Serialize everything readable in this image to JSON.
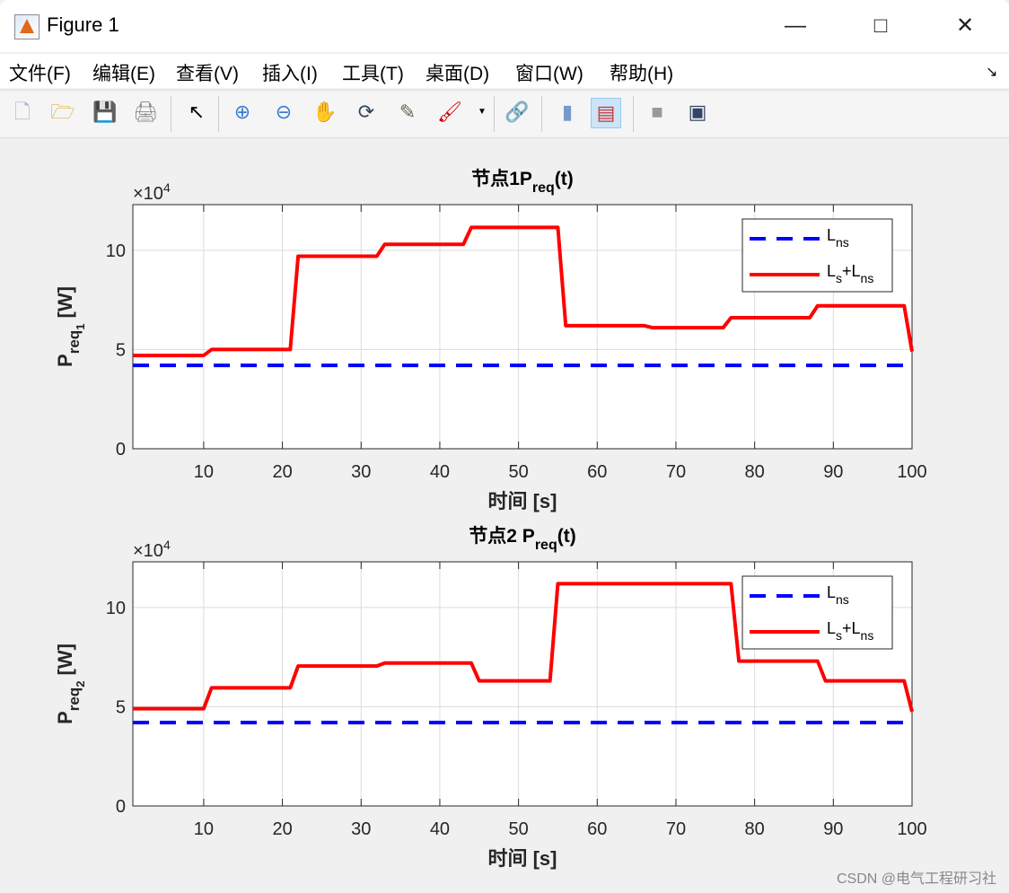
{
  "window": {
    "title": "Figure 1",
    "controls": [
      "minimize",
      "maximize",
      "close"
    ]
  },
  "menu": [
    "文件(F)",
    "编辑(E)",
    "查看(V)",
    "插入(I)",
    "工具(T)",
    "桌面(D)",
    "窗口(W)",
    "帮助(H)"
  ],
  "toolbar": [
    "new-figure-icon",
    "open-icon",
    "save-icon",
    "print-icon",
    "pointer-icon",
    "zoom-in-icon",
    "zoom-out-icon",
    "pan-icon",
    "rotate-icon",
    "data-cursor-icon",
    "brush-icon",
    "link-icon",
    "colorbar-icon",
    "legend-icon",
    "hide-plot-tools-icon",
    "show-plot-tools-icon"
  ],
  "watermark": "CSDN @电气工程研习社",
  "colors": {
    "series1": "#0000ff",
    "series2": "#ff0000"
  },
  "chart_data": [
    {
      "type": "line",
      "title": {
        "prefix": "节点1P",
        "sub": "req",
        "suffix": "(t)"
      },
      "xlabel": "时间 [s]",
      "ylabel": {
        "main": "P",
        "sub": "req",
        "subsub": "1",
        "unit": "  [W]"
      },
      "exponent": "×10^4",
      "xlim": [
        1,
        100
      ],
      "ylim": [
        0,
        12.3
      ],
      "xticks": [
        10,
        20,
        30,
        40,
        50,
        60,
        70,
        80,
        90,
        100
      ],
      "yticks": [
        0,
        5,
        10
      ],
      "grid": true,
      "legend_position": "top-right",
      "series": [
        {
          "name": "L_ns",
          "style": "dashed",
          "color": "#0000ff",
          "x": [
            1,
            100
          ],
          "y": [
            4.2,
            4.2
          ]
        },
        {
          "name": "L_s+L_ns",
          "style": "solid",
          "color": "#ff0000",
          "x": [
            1,
            10,
            11,
            21,
            22,
            32,
            33,
            43,
            44,
            55,
            56,
            66,
            67,
            76,
            77,
            87,
            88,
            99,
            100
          ],
          "y": [
            4.7,
            4.7,
            5.0,
            5.0,
            9.7,
            9.7,
            10.3,
            10.3,
            11.15,
            11.15,
            6.2,
            6.2,
            6.1,
            6.1,
            6.6,
            6.6,
            7.2,
            7.2,
            4.9
          ]
        }
      ]
    },
    {
      "type": "line",
      "title": {
        "prefix": "节点2 P",
        "sub": "req",
        "suffix": "(t)"
      },
      "xlabel": "时间 [s]",
      "ylabel": {
        "main": "P",
        "sub": "req",
        "subsub": "2",
        "unit": "  [W]"
      },
      "exponent": "×10^4",
      "xlim": [
        1,
        100
      ],
      "ylim": [
        0,
        12.3
      ],
      "xticks": [
        10,
        20,
        30,
        40,
        50,
        60,
        70,
        80,
        90,
        100
      ],
      "yticks": [
        0,
        5,
        10
      ],
      "grid": true,
      "legend_position": "top-right",
      "series": [
        {
          "name": "L_ns",
          "style": "dashed",
          "color": "#0000ff",
          "x": [
            1,
            100
          ],
          "y": [
            4.2,
            4.2
          ]
        },
        {
          "name": "L_s+L_ns",
          "style": "solid",
          "color": "#ff0000",
          "x": [
            1,
            10,
            11,
            21,
            22,
            32,
            33,
            44,
            45,
            54,
            55,
            77,
            78,
            88,
            89,
            99,
            100
          ],
          "y": [
            4.9,
            4.9,
            5.95,
            5.95,
            7.05,
            7.05,
            7.2,
            7.2,
            6.3,
            6.3,
            11.2,
            11.2,
            7.3,
            7.3,
            6.3,
            6.3,
            4.75
          ]
        }
      ]
    }
  ]
}
